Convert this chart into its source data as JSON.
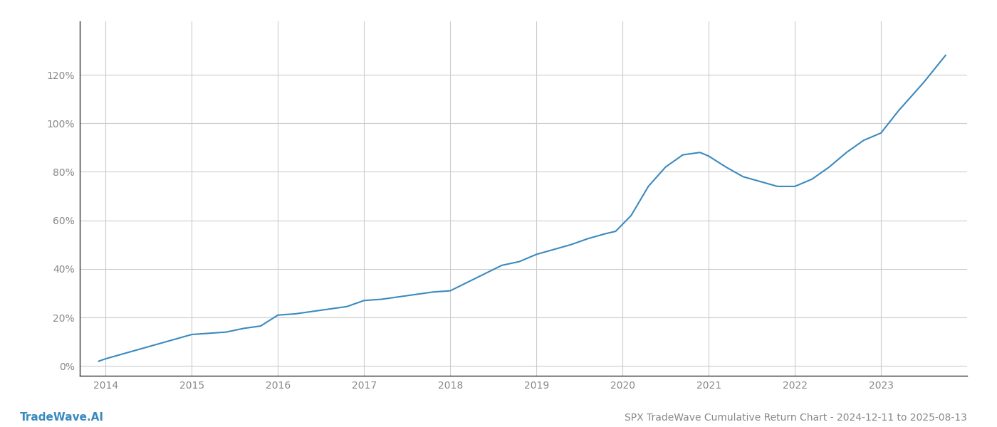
{
  "title": "SPX TradeWave Cumulative Return Chart - 2024-12-11 to 2025-08-13",
  "watermark": "TradeWave.AI",
  "line_color": "#3a8abf",
  "background_color": "#ffffff",
  "grid_color": "#cccccc",
  "x_values": [
    2013.92,
    2014.0,
    2014.2,
    2014.4,
    2014.6,
    2014.8,
    2015.0,
    2015.2,
    2015.4,
    2015.6,
    2015.8,
    2016.0,
    2016.2,
    2016.4,
    2016.6,
    2016.8,
    2017.0,
    2017.2,
    2017.4,
    2017.6,
    2017.8,
    2018.0,
    2018.2,
    2018.4,
    2018.6,
    2018.8,
    2019.0,
    2019.2,
    2019.4,
    2019.6,
    2019.8,
    2019.92,
    2020.1,
    2020.3,
    2020.5,
    2020.7,
    2020.9,
    2021.0,
    2021.2,
    2021.4,
    2021.6,
    2021.8,
    2022.0,
    2022.2,
    2022.4,
    2022.6,
    2022.8,
    2023.0,
    2023.2,
    2023.5,
    2023.75
  ],
  "y_values": [
    0.02,
    0.03,
    0.05,
    0.07,
    0.09,
    0.11,
    0.13,
    0.135,
    0.14,
    0.155,
    0.165,
    0.21,
    0.215,
    0.225,
    0.235,
    0.245,
    0.27,
    0.275,
    0.285,
    0.295,
    0.305,
    0.31,
    0.345,
    0.38,
    0.415,
    0.43,
    0.46,
    0.48,
    0.5,
    0.525,
    0.545,
    0.555,
    0.62,
    0.74,
    0.82,
    0.87,
    0.88,
    0.865,
    0.82,
    0.78,
    0.76,
    0.74,
    0.74,
    0.77,
    0.82,
    0.88,
    0.93,
    0.96,
    1.05,
    1.17,
    1.28
  ],
  "xlim": [
    2013.7,
    2024.0
  ],
  "ylim": [
    -0.04,
    1.42
  ],
  "yticks": [
    0.0,
    0.2,
    0.4,
    0.6,
    0.8,
    1.0,
    1.2
  ],
  "ytick_labels": [
    "0%",
    "20%",
    "40%",
    "60%",
    "80%",
    "100%",
    "120%"
  ],
  "xticks": [
    2014,
    2015,
    2016,
    2017,
    2018,
    2019,
    2020,
    2021,
    2022,
    2023
  ],
  "line_width": 1.5,
  "title_fontsize": 10,
  "tick_fontsize": 10,
  "watermark_fontsize": 11,
  "axis_color": "#999999",
  "text_color": "#888888",
  "spine_color": "#333333"
}
